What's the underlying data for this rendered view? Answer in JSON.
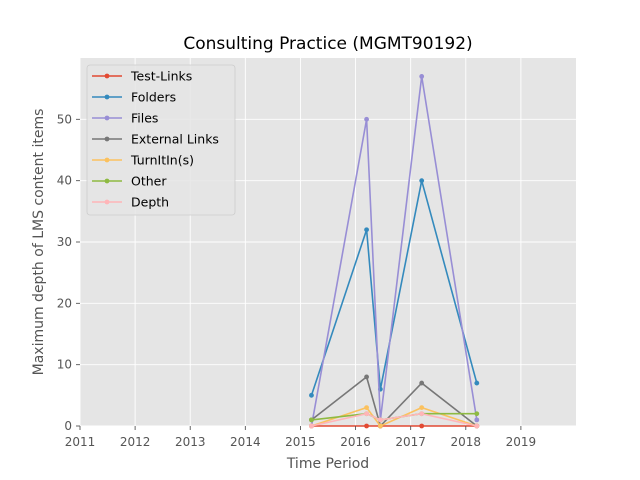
{
  "chart_data": {
    "type": "line",
    "title": "Consulting Practice (MGMT90192)",
    "xlabel": "Time Period",
    "ylabel": "Maximum depth of LMS content items",
    "xlim": [
      2011,
      2020
    ],
    "ylim": [
      0,
      60
    ],
    "xticks": [
      "2011",
      "2012",
      "2013",
      "2014",
      "2015",
      "2016",
      "2017",
      "2018",
      "2019"
    ],
    "yticks": [
      "0",
      "10",
      "20",
      "30",
      "40",
      "50"
    ],
    "grid": true,
    "legend_position": "upper-left",
    "x": [
      2015.2,
      2016.2,
      2016.45,
      2017.2,
      2018.2
    ],
    "series": [
      {
        "name": "Test-Links",
        "color": "#E24A33",
        "values": [
          0,
          0,
          0,
          0,
          0
        ]
      },
      {
        "name": "Folders",
        "color": "#348ABD",
        "values": [
          5,
          32,
          6,
          40,
          7
        ]
      },
      {
        "name": "Files",
        "color": "#988ED5",
        "values": [
          0,
          50,
          1,
          57,
          1
        ]
      },
      {
        "name": "External Links",
        "color": "#777777",
        "values": [
          1,
          8,
          0,
          7,
          0
        ]
      },
      {
        "name": "TurnItIn(s)",
        "color": "#FBC15E",
        "values": [
          0,
          3,
          0,
          3,
          0
        ]
      },
      {
        "name": "Other",
        "color": "#8EBA42",
        "values": [
          1,
          2,
          1,
          2,
          2
        ]
      },
      {
        "name": "Depth",
        "color": "#FFB5B8",
        "values": [
          0,
          2,
          1,
          2,
          0
        ]
      }
    ]
  }
}
